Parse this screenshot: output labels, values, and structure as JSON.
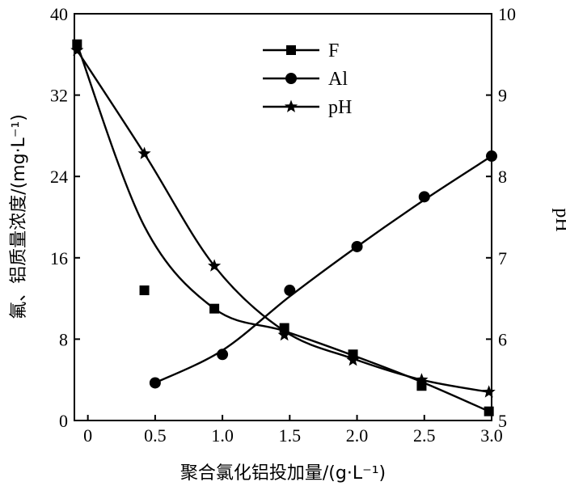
{
  "chart_data": {
    "type": "scatter",
    "title": "",
    "xlabel": "聚合氯化铝投加量/(g·L⁻¹)",
    "ylabel_left": "氟、铝质量浓度/(mg·L⁻¹)",
    "ylabel_right": "pH",
    "xlim": [
      -0.1,
      3.0
    ],
    "ylim_left": [
      0,
      40
    ],
    "ylim_right": [
      5,
      10
    ],
    "x_ticks": [
      0,
      0.5,
      1.0,
      1.5,
      2.0,
      2.5,
      3.0
    ],
    "x_tick_labels": [
      "0",
      "0.5",
      "1.0",
      "1.5",
      "2.0",
      "2.5",
      "3.0"
    ],
    "y_left_ticks": [
      0,
      8,
      16,
      24,
      32,
      40
    ],
    "y_left_tick_labels": [
      "0",
      "8",
      "16",
      "24",
      "32",
      "40"
    ],
    "y_right_ticks": [
      5,
      6,
      7,
      8,
      9,
      10
    ],
    "y_right_tick_labels": [
      "5",
      "6",
      "7",
      "8",
      "9",
      "10"
    ],
    "legend_position": "top-center",
    "grid": false,
    "series": [
      {
        "name": "F",
        "axis": "left",
        "marker": "square",
        "color": "#000000",
        "x": [
          -0.08,
          0.42,
          0.94,
          1.46,
          1.97,
          2.48,
          2.98
        ],
        "y": [
          37.0,
          12.8,
          11.0,
          9.1,
          6.5,
          3.4,
          0.9
        ],
        "fit_y": [
          37.0,
          19.1,
          11.0,
          8.8,
          6.4,
          3.8,
          0.9
        ]
      },
      {
        "name": "Al",
        "axis": "left",
        "marker": "circle",
        "color": "#000000",
        "x": [
          0.5,
          1.0,
          1.5,
          2.0,
          2.5,
          3.0
        ],
        "y": [
          3.7,
          6.5,
          12.8,
          17.1,
          22.0,
          26.0
        ],
        "fit_y": [
          3.7,
          6.9,
          12.2,
          17.1,
          21.7,
          26.0
        ]
      },
      {
        "name": "pH",
        "axis": "right",
        "marker": "star",
        "color": "#000000",
        "x": [
          -0.08,
          0.42,
          0.94,
          1.46,
          1.97,
          2.48,
          2.98
        ],
        "y": [
          9.55,
          8.28,
          6.9,
          6.05,
          5.74,
          5.5,
          5.35
        ],
        "fit_y": [
          9.55,
          8.28,
          6.9,
          6.1,
          5.76,
          5.5,
          5.35
        ]
      }
    ]
  }
}
